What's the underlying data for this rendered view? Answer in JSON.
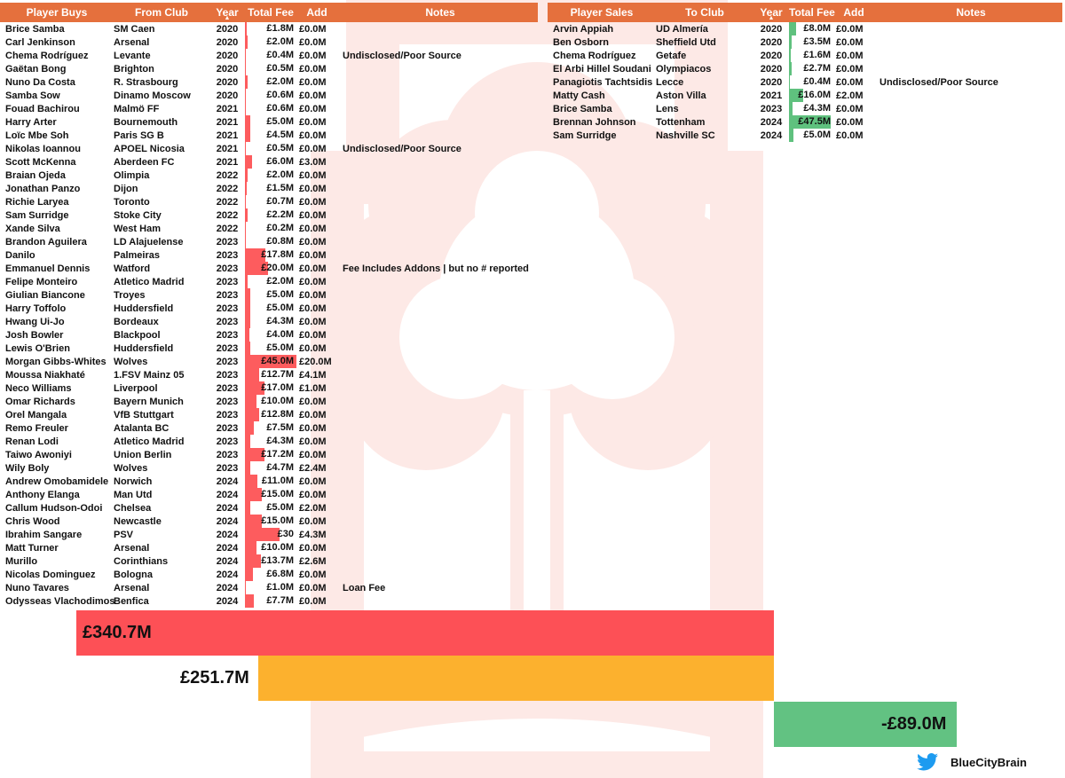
{
  "buys": {
    "columns": [
      "Player Buys",
      "From Club",
      "Year",
      "Total Fee",
      "Add",
      "Notes"
    ],
    "fee_scale_max": 45.0,
    "rows": [
      {
        "name": "Brice Samba",
        "club": "SM Caen",
        "year": "2020",
        "fee": "£1.8M",
        "fee_value": 1.8,
        "add": "£0.0M",
        "notes": ""
      },
      {
        "name": "Carl Jenkinson",
        "club": "Arsenal",
        "year": "2020",
        "fee": "£2.0M",
        "fee_value": 2.0,
        "add": "£0.0M",
        "notes": ""
      },
      {
        "name": "Chema Rodríguez",
        "club": "Levante",
        "year": "2020",
        "fee": "£0.4M",
        "fee_value": 0.4,
        "add": "£0.0M",
        "notes": "Undisclosed/Poor Source"
      },
      {
        "name": "Gaëtan Bong",
        "club": "Brighton",
        "year": "2020",
        "fee": "£0.5M",
        "fee_value": 0.5,
        "add": "£0.0M",
        "notes": ""
      },
      {
        "name": "Nuno Da Costa",
        "club": "R. Strasbourg",
        "year": "2020",
        "fee": "£2.0M",
        "fee_value": 2.0,
        "add": "£0.0M",
        "notes": ""
      },
      {
        "name": "Samba Sow",
        "club": "Dinamo Moscow",
        "year": "2020",
        "fee": "£0.6M",
        "fee_value": 0.6,
        "add": "£0.0M",
        "notes": ""
      },
      {
        "name": "Fouad Bachirou",
        "club": "Malmö FF",
        "year": "2021",
        "fee": "£0.6M",
        "fee_value": 0.6,
        "add": "£0.0M",
        "notes": ""
      },
      {
        "name": "Harry Arter",
        "club": "Bournemouth",
        "year": "2021",
        "fee": "£5.0M",
        "fee_value": 5.0,
        "add": "£0.0M",
        "notes": ""
      },
      {
        "name": "Loïc Mbe Soh",
        "club": "Paris SG B",
        "year": "2021",
        "fee": "£4.5M",
        "fee_value": 4.5,
        "add": "£0.0M",
        "notes": ""
      },
      {
        "name": "Nikolas Ioannou",
        "club": "APOEL Nicosia",
        "year": "2021",
        "fee": "£0.5M",
        "fee_value": 0.5,
        "add": "£0.0M",
        "notes": "Undisclosed/Poor Source"
      },
      {
        "name": "Scott McKenna",
        "club": "Aberdeen FC",
        "year": "2021",
        "fee": "£6.0M",
        "fee_value": 6.0,
        "add": "£3.0M",
        "notes": ""
      },
      {
        "name": "Braian Ojeda",
        "club": "Olimpia",
        "year": "2022",
        "fee": "£2.0M",
        "fee_value": 2.0,
        "add": "£0.0M",
        "notes": ""
      },
      {
        "name": "Jonathan Panzo",
        "club": "Dijon",
        "year": "2022",
        "fee": "£1.5M",
        "fee_value": 1.5,
        "add": "£0.0M",
        "notes": ""
      },
      {
        "name": "Richie Laryea",
        "club": "Toronto",
        "year": "2022",
        "fee": "£0.7M",
        "fee_value": 0.7,
        "add": "£0.0M",
        "notes": ""
      },
      {
        "name": "Sam Surridge",
        "club": "Stoke City",
        "year": "2022",
        "fee": "£2.2M",
        "fee_value": 2.2,
        "add": "£0.0M",
        "notes": ""
      },
      {
        "name": "Xande Silva",
        "club": "West Ham",
        "year": "2022",
        "fee": "£0.2M",
        "fee_value": 0.2,
        "add": "£0.0M",
        "notes": ""
      },
      {
        "name": "Brandon Aguilera",
        "club": "LD Alajuelense",
        "year": "2023",
        "fee": "£0.8M",
        "fee_value": 0.8,
        "add": "£0.0M",
        "notes": ""
      },
      {
        "name": "Danilo",
        "club": "Palmeiras",
        "year": "2023",
        "fee": "£17.8M",
        "fee_value": 17.8,
        "add": "£0.0M",
        "notes": ""
      },
      {
        "name": "Emmanuel Dennis",
        "club": "Watford",
        "year": "2023",
        "fee": "£20.0M",
        "fee_value": 20.0,
        "add": "£0.0M",
        "notes": "Fee Includes Addons | but no # reported"
      },
      {
        "name": "Felipe Monteiro",
        "club": "Atletico Madrid",
        "year": "2023",
        "fee": "£2.0M",
        "fee_value": 2.0,
        "add": "£0.0M",
        "notes": ""
      },
      {
        "name": "Giulian Biancone",
        "club": "Troyes",
        "year": "2023",
        "fee": "£5.0M",
        "fee_value": 5.0,
        "add": "£0.0M",
        "notes": ""
      },
      {
        "name": "Harry Toffolo",
        "club": "Huddersfield",
        "year": "2023",
        "fee": "£5.0M",
        "fee_value": 5.0,
        "add": "£0.0M",
        "notes": ""
      },
      {
        "name": "Hwang Ui-Jo",
        "club": "Bordeaux",
        "year": "2023",
        "fee": "£4.3M",
        "fee_value": 4.3,
        "add": "£0.0M",
        "notes": ""
      },
      {
        "name": "Josh Bowler",
        "club": "Blackpool",
        "year": "2023",
        "fee": "£4.0M",
        "fee_value": 4.0,
        "add": "£0.0M",
        "notes": ""
      },
      {
        "name": "Lewis O'Brien",
        "club": "Huddersfield",
        "year": "2023",
        "fee": "£5.0M",
        "fee_value": 5.0,
        "add": "£0.0M",
        "notes": ""
      },
      {
        "name": "Morgan Gibbs-Whites",
        "club": "Wolves",
        "year": "2023",
        "fee": "£45.0M",
        "fee_value": 45.0,
        "add": "£20.0M",
        "notes": ""
      },
      {
        "name": "Moussa Niakhaté",
        "club": "1.FSV Mainz 05",
        "year": "2023",
        "fee": "£12.7M",
        "fee_value": 12.7,
        "add": "£4.1M",
        "notes": ""
      },
      {
        "name": "Neco Williams",
        "club": "Liverpool",
        "year": "2023",
        "fee": "£17.0M",
        "fee_value": 17.0,
        "add": "£1.0M",
        "notes": ""
      },
      {
        "name": "Omar Richards",
        "club": "Bayern Munich",
        "year": "2023",
        "fee": "£10.0M",
        "fee_value": 10.0,
        "add": "£0.0M",
        "notes": ""
      },
      {
        "name": "Orel Mangala",
        "club": "VfB Stuttgart",
        "year": "2023",
        "fee": "£12.8M",
        "fee_value": 12.8,
        "add": "£0.0M",
        "notes": ""
      },
      {
        "name": "Remo Freuler",
        "club": "Atalanta BC",
        "year": "2023",
        "fee": "£7.5M",
        "fee_value": 7.5,
        "add": "£0.0M",
        "notes": ""
      },
      {
        "name": "Renan Lodi",
        "club": "Atletico Madrid",
        "year": "2023",
        "fee": "£4.3M",
        "fee_value": 4.3,
        "add": "£0.0M",
        "notes": ""
      },
      {
        "name": "Taiwo Awoniyi",
        "club": "Union Berlin",
        "year": "2023",
        "fee": "£17.2M",
        "fee_value": 17.2,
        "add": "£0.0M",
        "notes": ""
      },
      {
        "name": "Wily Boly",
        "club": "Wolves",
        "year": "2023",
        "fee": "£4.7M",
        "fee_value": 4.7,
        "add": "£2.4M",
        "notes": ""
      },
      {
        "name": "Andrew Omobamidele",
        "club": "Norwich",
        "year": "2024",
        "fee": "£11.0M",
        "fee_value": 11.0,
        "add": "£0.0M",
        "notes": ""
      },
      {
        "name": "Anthony Elanga",
        "club": "Man Utd",
        "year": "2024",
        "fee": "£15.0M",
        "fee_value": 15.0,
        "add": "£0.0M",
        "notes": ""
      },
      {
        "name": "Callum Hudson-Odoi",
        "club": "Chelsea",
        "year": "2024",
        "fee": "£5.0M",
        "fee_value": 5.0,
        "add": "£2.0M",
        "notes": ""
      },
      {
        "name": "Chris Wood",
        "club": "Newcastle",
        "year": "2024",
        "fee": "£15.0M",
        "fee_value": 15.0,
        "add": "£0.0M",
        "notes": ""
      },
      {
        "name": "Ibrahim Sangare",
        "club": "PSV",
        "year": "2024",
        "fee": "£30",
        "fee_value": 30.0,
        "add": "£4.3M",
        "notes": ""
      },
      {
        "name": "Matt Turner",
        "club": "Arsenal",
        "year": "2024",
        "fee": "£10.0M",
        "fee_value": 10.0,
        "add": "£0.0M",
        "notes": ""
      },
      {
        "name": "Murillo",
        "club": "Corinthians",
        "year": "2024",
        "fee": "£13.7M",
        "fee_value": 13.7,
        "add": "£2.6M",
        "notes": ""
      },
      {
        "name": "Nicolas Dominguez",
        "club": "Bologna",
        "year": "2024",
        "fee": "£6.8M",
        "fee_value": 6.8,
        "add": "£0.0M",
        "notes": ""
      },
      {
        "name": "Nuno Tavares",
        "club": "Arsenal",
        "year": "2024",
        "fee": "£1.0M",
        "fee_value": 1.0,
        "add": "£0.0M",
        "notes": "Loan Fee"
      },
      {
        "name": "Odysseas Vlachodimos",
        "club": "Benfica",
        "year": "2024",
        "fee": "£7.7M",
        "fee_value": 7.7,
        "add": "£0.0M",
        "notes": ""
      }
    ]
  },
  "sales": {
    "columns": [
      "Player Sales",
      "To Club",
      "Year",
      "Total Fee",
      "Add",
      "Notes"
    ],
    "fee_scale_max": 47.5,
    "rows": [
      {
        "name": "Arvin Appiah",
        "club": "UD Almería",
        "year": "2020",
        "fee": "£8.0M",
        "fee_value": 8.0,
        "add": "£0.0M",
        "notes": ""
      },
      {
        "name": "Ben Osborn",
        "club": "Sheffield Utd",
        "year": "2020",
        "fee": "£3.5M",
        "fee_value": 3.5,
        "add": "£0.0M",
        "notes": ""
      },
      {
        "name": "Chema Rodríguez",
        "club": "Getafe",
        "year": "2020",
        "fee": "£1.6M",
        "fee_value": 1.6,
        "add": "£0.0M",
        "notes": ""
      },
      {
        "name": "El Arbi Hillel Soudani",
        "club": "Olympiacos",
        "year": "2020",
        "fee": "£2.7M",
        "fee_value": 2.7,
        "add": "£0.0M",
        "notes": ""
      },
      {
        "name": "Panagiotis Tachtsidis",
        "club": "Lecce",
        "year": "2020",
        "fee": "£0.4M",
        "fee_value": 0.4,
        "add": "£0.0M",
        "notes": "Undisclosed/Poor Source"
      },
      {
        "name": "Matty Cash",
        "club": "Aston Villa",
        "year": "2021",
        "fee": "£16.0M",
        "fee_value": 16.0,
        "add": "£2.0M",
        "notes": ""
      },
      {
        "name": "Brice Samba",
        "club": "Lens",
        "year": "2023",
        "fee": "£4.3M",
        "fee_value": 4.3,
        "add": "£0.0M",
        "notes": ""
      },
      {
        "name": "Brennan Johnson",
        "club": "Tottenham",
        "year": "2024",
        "fee": "£47.5M",
        "fee_value": 47.5,
        "add": "£0.0M",
        "notes": ""
      },
      {
        "name": "Sam Surridge",
        "club": "Nashville SC",
        "year": "2024",
        "fee": "£5.0M",
        "fee_value": 5.0,
        "add": "£0.0M",
        "notes": ""
      }
    ]
  },
  "summary": {
    "spend_label": "£340.7M",
    "spend_value": 340.7,
    "spend_color": "#fd5056",
    "income_label": "£251.7M",
    "income_value": 251.7,
    "income_color": "#fcb12e",
    "net_label": "-£89.0M",
    "net_value": -89.0,
    "net_color": "#62c282"
  },
  "colors": {
    "header_bg": "#e5703d",
    "buy_bar": "#fd5c5e",
    "sale_bar": "#5fc17e",
    "emblem": "#fde9e6"
  },
  "credit": {
    "icon": "twitter-bird-icon",
    "handle": "BlueCityBrain"
  }
}
